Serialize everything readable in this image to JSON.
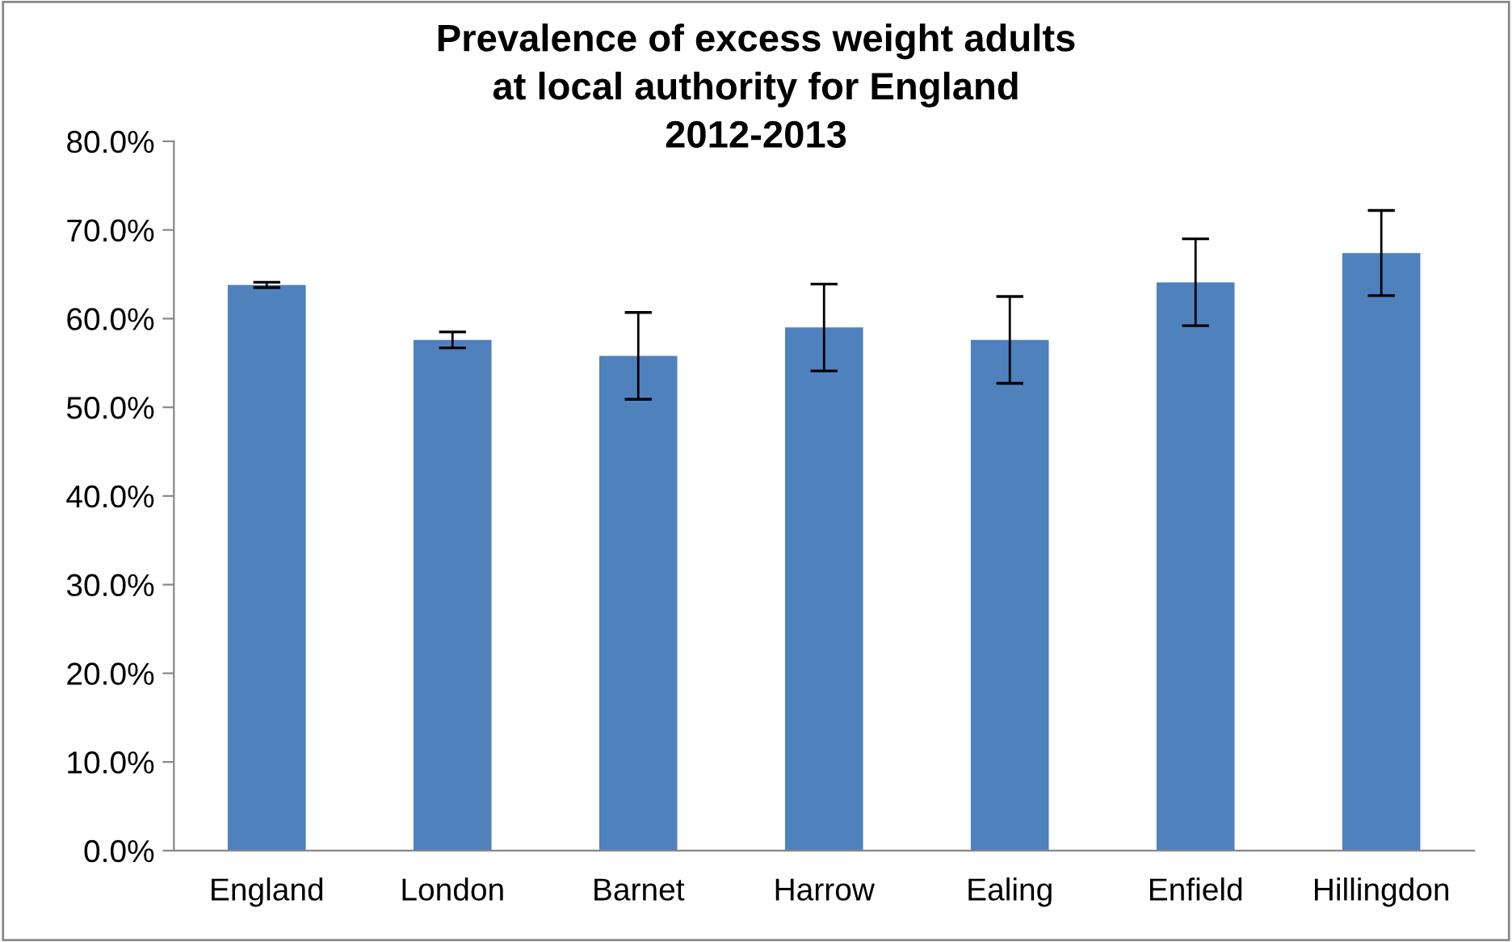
{
  "chart_data": {
    "type": "bar",
    "title": "Prevalence of excess weight adults\nat local authority for England\n2012-2013",
    "categories": [
      "England",
      "London",
      "Barnet",
      "Harrow",
      "Ealing",
      "Enfield",
      "Hillingdon"
    ],
    "values": [
      63.8,
      57.6,
      55.8,
      59.0,
      57.6,
      64.1,
      67.4
    ],
    "errors": [
      0.3,
      0.9,
      4.9,
      4.9,
      4.9,
      4.9,
      4.8
    ],
    "color": "#4f81bd",
    "ylim": [
      0,
      80
    ],
    "yticks": [
      {
        "value": 0,
        "label": "0.0%"
      },
      {
        "value": 10,
        "label": "10.0%"
      },
      {
        "value": 20,
        "label": "20.0%"
      },
      {
        "value": 30,
        "label": "30.0%"
      },
      {
        "value": 40,
        "label": "40.0%"
      },
      {
        "value": 50,
        "label": "50.0%"
      },
      {
        "value": 60,
        "label": "60.0%"
      },
      {
        "value": 70,
        "label": "70.0%"
      },
      {
        "value": 80,
        "label": "80.0%"
      }
    ],
    "grid": false
  }
}
